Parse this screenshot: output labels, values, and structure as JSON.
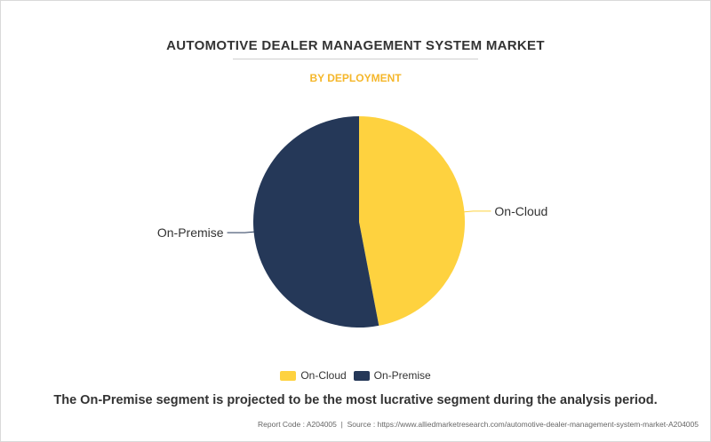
{
  "chart_data": {
    "type": "pie",
    "title": "AUTOMOTIVE DEALER MANAGEMENT SYSTEM MARKET",
    "subtitle": "BY DEPLOYMENT",
    "slices": [
      {
        "label": "On-Cloud",
        "value": 47,
        "color": "#fed23f"
      },
      {
        "label": "On-Premise",
        "value": 53,
        "color": "#253858"
      }
    ],
    "legend_position": "bottom"
  },
  "caption": "The On-Premise segment is projected to be the most lucrative segment during the analysis period.",
  "footer": {
    "report_code": "Report Code : A204005",
    "separator": "|",
    "source": "Source : https://www.alliedmarketresearch.com/automotive-dealer-management-system-market-A204005"
  }
}
